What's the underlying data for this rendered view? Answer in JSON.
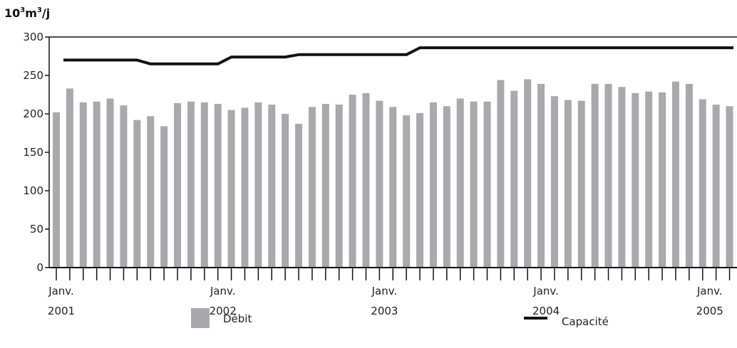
{
  "chart_data": {
    "type": "bar",
    "ylabel_base": "10",
    "ylabel_exp1": "3",
    "ylabel_mid": "m",
    "ylabel_exp2": "3",
    "ylabel_tail": "/j",
    "ylim": [
      0,
      300
    ],
    "yticks": [
      "0",
      "50",
      "100",
      "150",
      "200",
      "250",
      "300"
    ],
    "yticks_values": [
      0,
      50,
      100,
      150,
      200,
      250,
      300
    ],
    "year_labels": [
      {
        "month": "Janv.",
        "year": "2001",
        "index": 0
      },
      {
        "month": "Janv.",
        "year": "2002",
        "index": 12
      },
      {
        "month": "Janv.",
        "year": "2003",
        "index": 24
      },
      {
        "month": "Janv.",
        "year": "2004",
        "index": 36
      },
      {
        "month": "Janv.",
        "year": "2005",
        "index": 48
      }
    ],
    "grid": false,
    "legend_position": "bottom",
    "series": [
      {
        "name": "Débit",
        "kind": "bar",
        "color": "#a7a9ac",
        "values": [
          202,
          233,
          215,
          216,
          220,
          211,
          192,
          197,
          184,
          214,
          216,
          215,
          213,
          205,
          208,
          215,
          212,
          200,
          187,
          209,
          213,
          212,
          225,
          227,
          217,
          209,
          198,
          201,
          215,
          210,
          220,
          216,
          216,
          244,
          230,
          245,
          239,
          223,
          218,
          217,
          239,
          239,
          235,
          227,
          229,
          228,
          242,
          239,
          219,
          212,
          210
        ]
      },
      {
        "name": "Capacité",
        "kind": "line",
        "color": "#111111",
        "values": [
          270,
          270,
          270,
          270,
          270,
          270,
          270,
          265,
          265,
          265,
          265,
          265,
          265,
          274,
          274,
          274,
          274,
          274,
          277,
          277,
          277,
          277,
          277,
          277,
          277,
          277,
          277,
          286,
          286,
          286,
          286,
          286,
          286,
          286,
          286,
          286,
          286,
          286,
          286,
          286,
          286,
          286,
          286,
          286,
          286,
          286,
          286,
          286,
          286,
          286,
          286
        ]
      }
    ]
  }
}
